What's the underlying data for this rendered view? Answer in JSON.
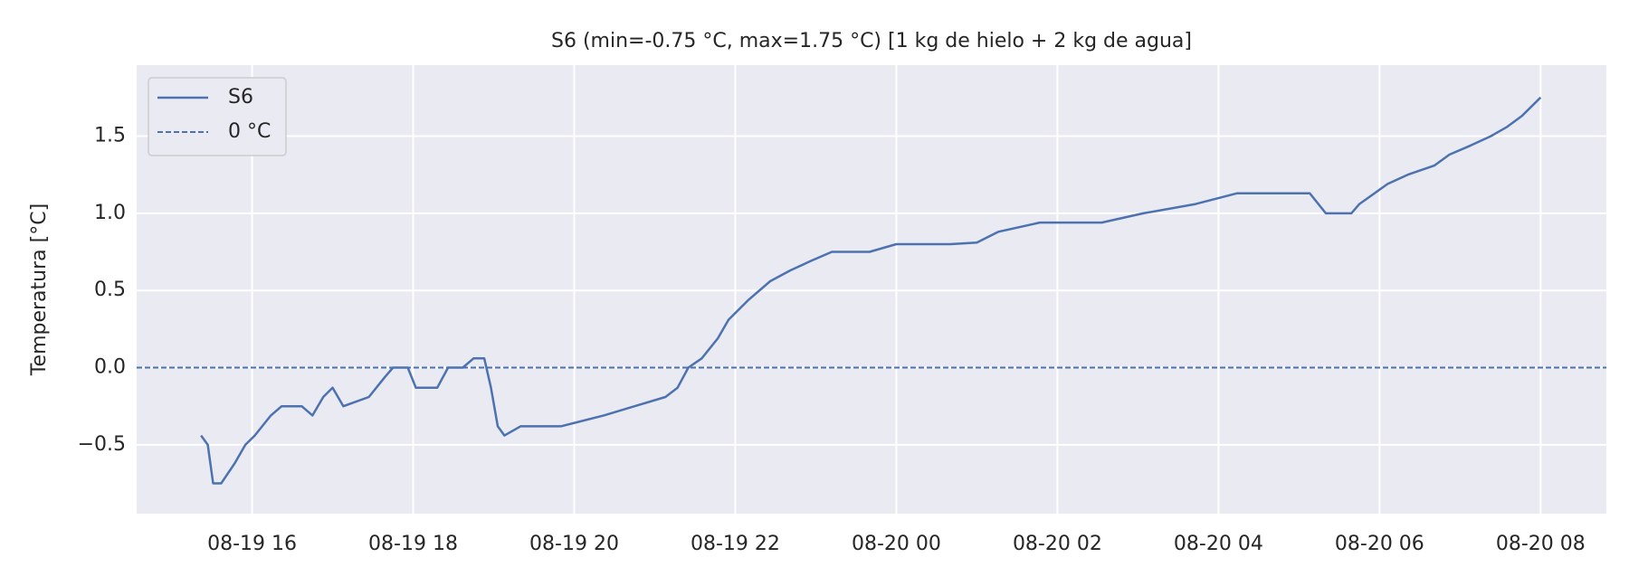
{
  "chart_data": {
    "type": "line",
    "title": "S6  (min=-0.75 °C, max=1.75 °C)  [1 kg de hielo + 2 kg de agua]",
    "y_label": "Temperatura [°C]",
    "x": [
      "08-19 15:22",
      "08-19 15:27",
      "08-19 15:31",
      "08-19 15:37",
      "08-19 15:47",
      "08-19 15:55",
      "08-19 16:02",
      "08-19 16:14",
      "08-19 16:22",
      "08-19 16:37",
      "08-19 16:45",
      "08-19 16:53",
      "08-19 17:00",
      "08-19 17:08",
      "08-19 17:27",
      "08-19 17:39",
      "08-19 17:45",
      "08-19 17:56",
      "08-19 18:02",
      "08-19 18:18",
      "08-19 18:26",
      "08-19 18:37",
      "08-19 18:45",
      "08-19 18:53",
      "08-19 18:58",
      "08-19 19:03",
      "08-19 19:08",
      "08-19 19:20",
      "08-19 19:50",
      "08-19 20:22",
      "08-19 20:45",
      "08-19 21:08",
      "08-19 21:17",
      "08-19 21:25",
      "08-19 21:35",
      "08-19 21:47",
      "08-19 21:55",
      "08-19 22:10",
      "08-19 22:26",
      "08-19 22:41",
      "08-19 22:56",
      "08-19 23:12",
      "08-19 23:40",
      "08-20 00:00",
      "08-20 00:40",
      "08-20 01:00",
      "08-20 01:16",
      "08-20 01:47",
      "08-20 02:33",
      "08-20 03:04",
      "08-20 03:43",
      "08-20 04:14",
      "08-20 05:08",
      "08-20 05:20",
      "08-20 05:39",
      "08-20 05:45",
      "08-20 06:06",
      "08-20 06:21",
      "08-20 06:41",
      "08-20 06:52",
      "08-20 07:08",
      "08-20 07:23",
      "08-20 07:35",
      "08-20 07:46",
      "08-20 08:00"
    ],
    "series": [
      {
        "name": "S6",
        "color": "#4c72b0",
        "values": [
          -0.44,
          -0.5,
          -0.75,
          -0.75,
          -0.62,
          -0.5,
          -0.44,
          -0.31,
          -0.25,
          -0.25,
          -0.31,
          -0.19,
          -0.13,
          -0.25,
          -0.19,
          -0.06,
          0.0,
          0.0,
          -0.13,
          -0.13,
          0.0,
          0.0,
          0.06,
          0.06,
          -0.13,
          -0.38,
          -0.44,
          -0.38,
          -0.38,
          -0.31,
          -0.25,
          -0.19,
          -0.13,
          0.0,
          0.06,
          0.19,
          0.31,
          0.44,
          0.56,
          0.63,
          0.69,
          0.75,
          0.75,
          0.8,
          0.8,
          0.81,
          0.88,
          0.94,
          0.94,
          1.0,
          1.06,
          1.13,
          1.13,
          1.0,
          1.0,
          1.06,
          1.19,
          1.25,
          1.31,
          1.38,
          1.44,
          1.5,
          1.56,
          1.63,
          1.75
        ]
      }
    ],
    "reference_line": {
      "name": "0 °C",
      "value": 0,
      "color": "#4c72b0",
      "dashed": true
    },
    "xlim": [
      "08-19 14:34",
      "08-20 08:49"
    ],
    "xticks": [
      "08-19 16",
      "08-19 18",
      "08-19 20",
      "08-19 22",
      "08-20 00",
      "08-20 02",
      "08-20 04",
      "08-20 06",
      "08-20 08"
    ],
    "ylim": [
      -0.946,
      1.96
    ],
    "yticks": [
      {
        "value": -0.5,
        "label": "−0.5"
      },
      {
        "value": 0,
        "label": "0.0"
      },
      {
        "value": 0.5,
        "label": "0.5"
      },
      {
        "value": 1,
        "label": "1.0"
      },
      {
        "value": 1.5,
        "label": "1.5"
      }
    ],
    "grid": true,
    "legend": "upper left"
  }
}
